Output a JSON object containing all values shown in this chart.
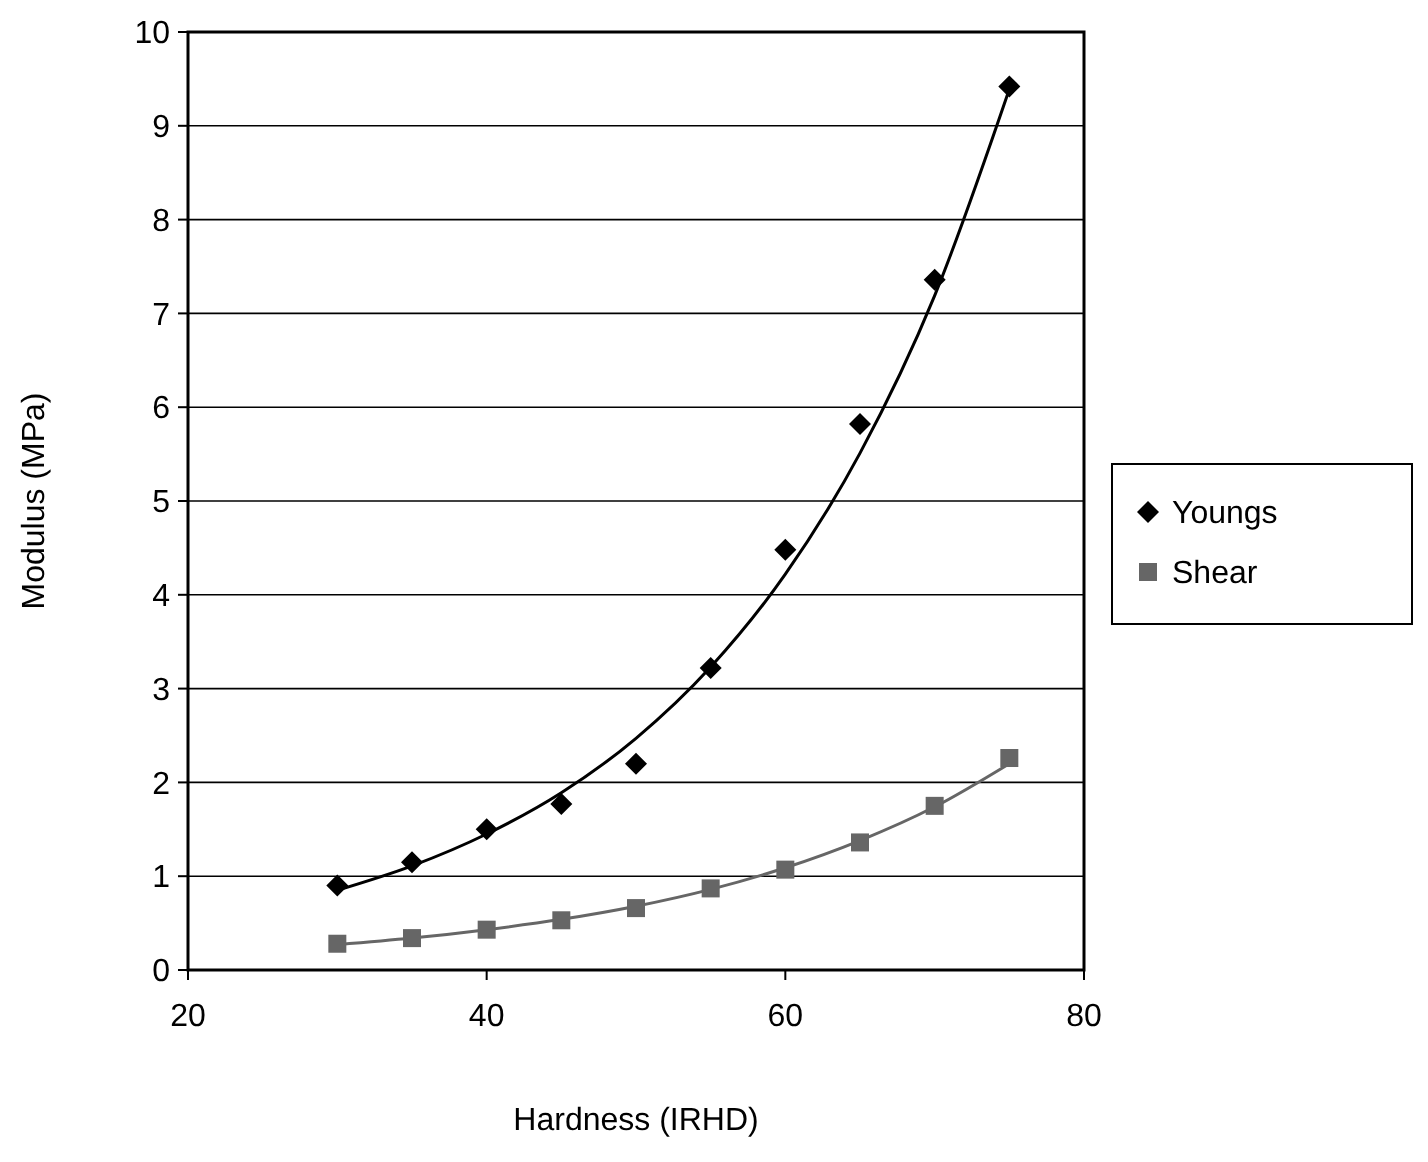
{
  "chart_data": {
    "type": "scatter",
    "xlabel": "Hardness (IRHD)",
    "ylabel": "Modulus (MPa)",
    "x": [
      30,
      35,
      40,
      45,
      50,
      55,
      60,
      65,
      70,
      75
    ],
    "series": [
      {
        "name": "Youngs",
        "color": "#000000",
        "marker": "diamond",
        "values": [
          0.9,
          1.15,
          1.5,
          1.77,
          2.2,
          3.22,
          4.48,
          5.82,
          7.36,
          9.42
        ]
      },
      {
        "name": "Shear",
        "color": "#666666",
        "marker": "square",
        "values": [
          0.28,
          0.34,
          0.43,
          0.53,
          0.66,
          0.87,
          1.07,
          1.36,
          1.75,
          2.26
        ]
      },
      {
        "type": "line",
        "color": "#000000",
        "x": [
          30,
          35,
          40,
          45,
          50,
          55,
          60,
          65,
          70,
          75
        ],
        "values": [
          0.85,
          1.11,
          1.45,
          1.89,
          2.47,
          3.23,
          4.22,
          5.51,
          7.19,
          9.39
        ]
      },
      {
        "type": "line",
        "color": "#666666",
        "x": [
          30,
          35,
          40,
          45,
          50,
          55,
          60,
          65,
          70,
          75
        ],
        "values": [
          0.27,
          0.34,
          0.43,
          0.54,
          0.68,
          0.86,
          1.09,
          1.38,
          1.74,
          2.2
        ]
      }
    ],
    "xlim": [
      20,
      80
    ],
    "xticks": [
      20,
      40,
      60,
      80
    ],
    "ylim": [
      0,
      10
    ],
    "yticks": [
      0,
      1,
      2,
      3,
      4,
      5,
      6,
      7,
      8,
      9,
      10
    ],
    "grid": "y",
    "legend": "right",
    "line_style": "solid"
  }
}
